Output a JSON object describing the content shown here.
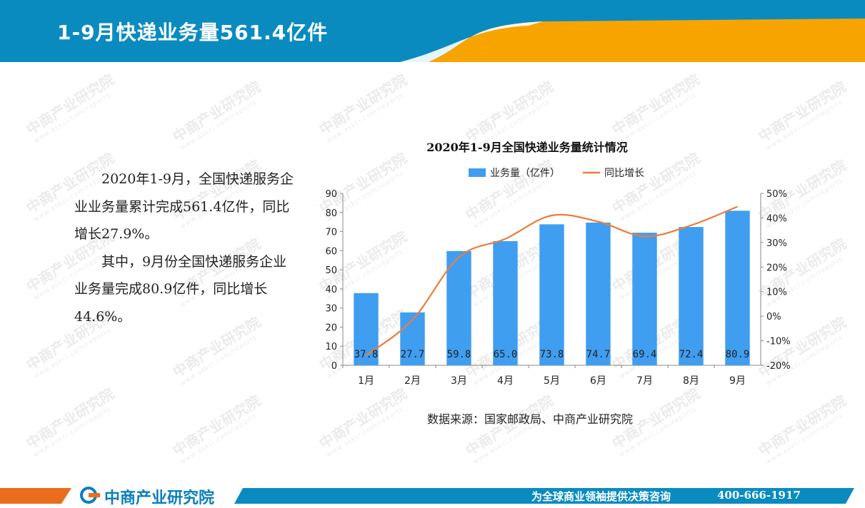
{
  "header": {
    "title": "1-9月快递业务量561.4亿件"
  },
  "body_text": {
    "p1": "2020年1-9月，全国快递服务企业业务量累计完成561.4亿件，同比增长27.9%。",
    "p2": "其中，9月份全国快递服务企业业务量完成80.9亿件，同比增长44.6%。"
  },
  "watermark": {
    "name": "中商产业研究院",
    "url": "www.askci.com/reports"
  },
  "colors": {
    "bar": "#3f9ef0",
    "line": "#ef7b3a",
    "header": "#0a8bc0",
    "accent": "#f8a400",
    "footer_orange": "#e86e1c"
  },
  "chart_data": {
    "type": "bar",
    "title": "2020年1-9月全国快递业务量统计情况",
    "categories": [
      "1月",
      "2月",
      "3月",
      "4月",
      "5月",
      "6月",
      "7月",
      "8月",
      "9月"
    ],
    "series": [
      {
        "name": "业务量（亿件）",
        "type": "bar",
        "axis": "left",
        "values": [
          37.8,
          27.7,
          59.8,
          65.0,
          73.8,
          74.7,
          69.4,
          72.4,
          80.9
        ],
        "labels": [
          "37.8",
          "27.7",
          "59.8",
          "65.0",
          "73.8",
          "74.7",
          "69.4",
          "72.4",
          "80.9"
        ]
      },
      {
        "name": "同比增长",
        "type": "line",
        "axis": "right",
        "values": [
          -16.0,
          -1.5,
          24.0,
          31.5,
          41.0,
          38.5,
          32.5,
          37.0,
          44.6
        ]
      }
    ],
    "y_left": {
      "min": 0,
      "max": 90,
      "ticks": [
        "0",
        "10",
        "20",
        "30",
        "40",
        "50",
        "60",
        "70",
        "80",
        "90"
      ]
    },
    "y_right": {
      "min": -20,
      "max": 50,
      "ticks": [
        "-20%",
        "-10%",
        "0%",
        "10%",
        "20%",
        "30%",
        "40%",
        "50%"
      ]
    },
    "legend": "top",
    "grid": false
  },
  "source": "数据来源：国家邮政局、中商产业研究院",
  "footer": {
    "brand": "中商产业研究院",
    "slogan": "为全球商业领袖提供决策咨询",
    "phone": "400-666-1917"
  }
}
